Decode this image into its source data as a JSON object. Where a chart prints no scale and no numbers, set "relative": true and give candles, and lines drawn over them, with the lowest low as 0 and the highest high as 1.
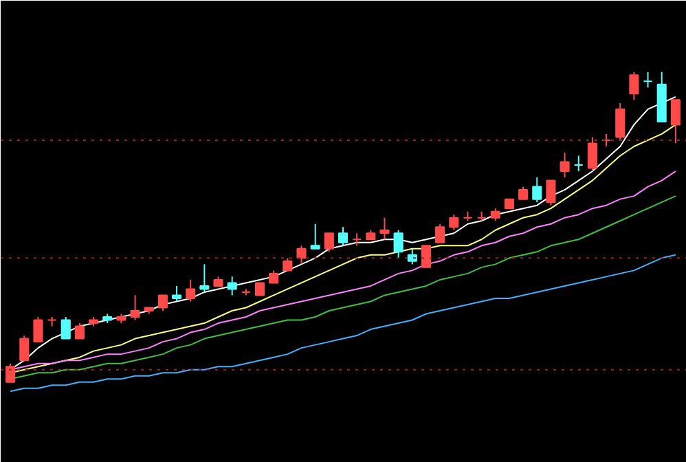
{
  "chart_data": {
    "type": "candlestick",
    "relative": true,
    "tick_labels": false,
    "categories": [
      null,
      null,
      null,
      null,
      null,
      null,
      null,
      null,
      null,
      null,
      null,
      null,
      null,
      null,
      null,
      null,
      null,
      null,
      null,
      null,
      null,
      null,
      null,
      null,
      null,
      null,
      null,
      null,
      null,
      null,
      null,
      null,
      null,
      null,
      null,
      null,
      null,
      null,
      null,
      null,
      null,
      null,
      null,
      null,
      null,
      null,
      null,
      null,
      null
    ],
    "ohlc": [
      [
        0.0,
        0.06,
        0.0,
        0.05
      ],
      [
        0.07,
        0.15,
        0.07,
        0.14
      ],
      [
        0.13,
        0.21,
        0.13,
        0.2
      ],
      [
        0.2,
        0.21,
        0.18,
        0.2
      ],
      [
        0.2,
        0.21,
        0.14,
        0.14
      ],
      [
        0.14,
        0.19,
        0.14,
        0.18
      ],
      [
        0.19,
        0.21,
        0.18,
        0.2
      ],
      [
        0.21,
        0.22,
        0.19,
        0.2
      ],
      [
        0.2,
        0.22,
        0.19,
        0.21
      ],
      [
        0.21,
        0.28,
        0.2,
        0.23
      ],
      [
        0.23,
        0.24,
        0.22,
        0.24
      ],
      [
        0.24,
        0.28,
        0.23,
        0.28
      ],
      [
        0.28,
        0.31,
        0.26,
        0.27
      ],
      [
        0.27,
        0.33,
        0.26,
        0.3
      ],
      [
        0.31,
        0.38,
        0.29,
        0.3
      ],
      [
        0.31,
        0.34,
        0.31,
        0.33
      ],
      [
        0.32,
        0.34,
        0.28,
        0.3
      ],
      [
        0.29,
        0.3,
        0.28,
        0.29
      ],
      [
        0.28,
        0.32,
        0.28,
        0.32
      ],
      [
        0.32,
        0.36,
        0.32,
        0.35
      ],
      [
        0.36,
        0.4,
        0.36,
        0.39
      ],
      [
        0.4,
        0.44,
        0.38,
        0.43
      ],
      [
        0.44,
        0.51,
        0.43,
        0.43
      ],
      [
        0.43,
        0.48,
        0.42,
        0.48
      ],
      [
        0.48,
        0.5,
        0.44,
        0.45
      ],
      [
        0.46,
        0.48,
        0.44,
        0.46
      ],
      [
        0.46,
        0.49,
        0.46,
        0.48
      ],
      [
        0.48,
        0.53,
        0.46,
        0.49
      ],
      [
        0.48,
        0.49,
        0.4,
        0.42
      ],
      [
        0.41,
        0.43,
        0.38,
        0.39
      ],
      [
        0.37,
        0.44,
        0.37,
        0.44
      ],
      [
        0.45,
        0.51,
        0.45,
        0.5
      ],
      [
        0.5,
        0.54,
        0.49,
        0.53
      ],
      [
        0.53,
        0.55,
        0.52,
        0.53
      ],
      [
        0.53,
        0.55,
        0.52,
        0.53
      ],
      [
        0.53,
        0.56,
        0.52,
        0.55
      ],
      [
        0.56,
        0.59,
        0.56,
        0.59
      ],
      [
        0.59,
        0.63,
        0.59,
        0.62
      ],
      [
        0.63,
        0.66,
        0.58,
        0.59
      ],
      [
        0.58,
        0.65,
        0.57,
        0.65
      ],
      [
        0.68,
        0.74,
        0.66,
        0.71
      ],
      [
        0.7,
        0.73,
        0.68,
        0.7
      ],
      [
        0.69,
        0.79,
        0.68,
        0.77
      ],
      [
        0.78,
        0.8,
        0.76,
        0.78
      ],
      [
        0.79,
        0.9,
        0.78,
        0.88
      ],
      [
        0.93,
        1.0,
        0.91,
        0.99
      ],
      [
        0.97,
        1.0,
        0.95,
        0.97
      ],
      [
        0.96,
        1.0,
        0.84,
        0.84
      ],
      [
        0.83,
        0.91,
        0.77,
        0.91
      ]
    ],
    "colors": [
      "#ff4a4a",
      "#ff4a4a",
      "#ff4a4a",
      "#ff4a4a",
      "#54ffff",
      "#ff4a4a",
      "#ff4a4a",
      "#54ffff",
      "#ff4a4a",
      "#ff4a4a",
      "#ff4a4a",
      "#ff4a4a",
      "#54ffff",
      "#ff4a4a",
      "#54ffff",
      "#ff4a4a",
      "#54ffff",
      "#ff4a4a",
      "#ff4a4a",
      "#ff4a4a",
      "#ff4a4a",
      "#ff4a4a",
      "#54ffff",
      "#ff4a4a",
      "#54ffff",
      "#ff4a4a",
      "#ff4a4a",
      "#ff4a4a",
      "#54ffff",
      "#54ffff",
      "#ff4a4a",
      "#ff4a4a",
      "#ff4a4a",
      "#ff4a4a",
      "#ff4a4a",
      "#ff4a4a",
      "#ff4a4a",
      "#ff4a4a",
      "#54ffff",
      "#ff4a4a",
      "#ff4a4a",
      "#54ffff",
      "#ff4a4a",
      "#ff4a4a",
      "#ff4a4a",
      "#ff4a4a",
      "#54ffff",
      "#54ffff",
      "#ff4a4a"
    ],
    "series": [
      {
        "type": "line",
        "color": "#ffffff",
        "values": [
          0.04,
          0.07,
          0.11,
          0.14,
          0.16,
          0.18,
          0.19,
          0.2,
          0.21,
          0.22,
          0.23,
          0.25,
          0.26,
          0.27,
          0.29,
          0.3,
          0.31,
          0.32,
          0.33,
          0.34,
          0.36,
          0.38,
          0.4,
          0.43,
          0.44,
          0.45,
          0.45,
          0.46,
          0.46,
          0.45,
          0.46,
          0.47,
          0.48,
          0.51,
          0.52,
          0.54,
          0.55,
          0.56,
          0.57,
          0.6,
          0.62,
          0.65,
          0.68,
          0.72,
          0.76,
          0.83,
          0.88,
          0.9,
          0.92
        ]
      },
      {
        "type": "line",
        "color": "#ffff80",
        "values": [
          0.03,
          0.04,
          0.05,
          0.06,
          0.07,
          0.08,
          0.1,
          0.11,
          0.12,
          0.14,
          0.15,
          0.16,
          0.17,
          0.18,
          0.19,
          0.21,
          0.23,
          0.24,
          0.26,
          0.28,
          0.3,
          0.32,
          0.34,
          0.36,
          0.38,
          0.4,
          0.41,
          0.41,
          0.42,
          0.43,
          0.43,
          0.44,
          0.44,
          0.44,
          0.46,
          0.49,
          0.51,
          0.53,
          0.54,
          0.56,
          0.59,
          0.62,
          0.65,
          0.69,
          0.73,
          0.76,
          0.78,
          0.8,
          0.83
        ]
      },
      {
        "type": "line",
        "color": "#ff80ff",
        "values": [
          0.04,
          0.05,
          0.06,
          0.06,
          0.07,
          0.07,
          0.08,
          0.09,
          0.09,
          0.1,
          0.11,
          0.13,
          0.14,
          0.16,
          0.17,
          0.19,
          0.2,
          0.21,
          0.23,
          0.24,
          0.25,
          0.26,
          0.27,
          0.28,
          0.29,
          0.3,
          0.31,
          0.33,
          0.35,
          0.36,
          0.38,
          0.39,
          0.41,
          0.42,
          0.44,
          0.45,
          0.47,
          0.48,
          0.5,
          0.51,
          0.53,
          0.54,
          0.56,
          0.57,
          0.59,
          0.6,
          0.63,
          0.65,
          0.68
        ]
      },
      {
        "type": "line",
        "color": "#40c040",
        "values": [
          0.01,
          0.02,
          0.03,
          0.03,
          0.04,
          0.04,
          0.05,
          0.06,
          0.06,
          0.07,
          0.08,
          0.09,
          0.11,
          0.12,
          0.14,
          0.15,
          0.16,
          0.17,
          0.18,
          0.19,
          0.2,
          0.2,
          0.21,
          0.23,
          0.24,
          0.25,
          0.26,
          0.28,
          0.29,
          0.3,
          0.31,
          0.33,
          0.34,
          0.35,
          0.37,
          0.38,
          0.4,
          0.41,
          0.42,
          0.44,
          0.45,
          0.46,
          0.48,
          0.5,
          0.52,
          0.54,
          0.56,
          0.58,
          0.6
        ]
      },
      {
        "type": "line",
        "color": "#40b0ff",
        "values": [
          -0.03,
          -0.02,
          -0.02,
          -0.01,
          -0.01,
          0.0,
          0.0,
          0.01,
          0.01,
          0.02,
          0.02,
          0.03,
          0.03,
          0.04,
          0.04,
          0.05,
          0.05,
          0.06,
          0.07,
          0.08,
          0.09,
          0.11,
          0.12,
          0.13,
          0.14,
          0.15,
          0.17,
          0.18,
          0.19,
          0.2,
          0.22,
          0.23,
          0.24,
          0.25,
          0.26,
          0.27,
          0.27,
          0.28,
          0.29,
          0.3,
          0.31,
          0.32,
          0.33,
          0.34,
          0.35,
          0.36,
          0.38,
          0.4,
          0.41
        ]
      }
    ],
    "ref_lines": [
      {
        "axis": "y",
        "value": 0.78,
        "color": "#a02020",
        "line_style": "dotted"
      },
      {
        "axis": "y",
        "value": 0.4,
        "color": "#a02020",
        "line_style": "dotted"
      },
      {
        "axis": "y",
        "value": 0.04,
        "color": "#a02020",
        "line_style": "dotted"
      }
    ]
  }
}
